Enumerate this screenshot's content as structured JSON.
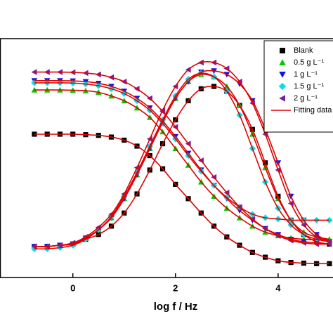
{
  "chart_data": {
    "type": "scatter",
    "x_label": "log f / Hz",
    "xlim": [
      -1.42,
      5.07
    ],
    "xticks": [
      0,
      2,
      4
    ],
    "ylim": [
      0,
      100
    ],
    "x": [
      -0.75,
      -0.5,
      -0.25,
      0,
      0.25,
      0.5,
      0.75,
      1,
      1.25,
      1.5,
      1.75,
      2,
      2.25,
      2.5,
      2.75,
      3,
      3.25,
      3.5,
      3.75,
      4,
      4.25,
      4.5,
      4.75,
      5
    ],
    "series": [
      {
        "name": "Blank",
        "color": "#000000",
        "marker": "square",
        "modulus": [
          60,
          60,
          60,
          60,
          59.8,
          59.5,
          58.8,
          57.5,
          55,
          51,
          45.5,
          39,
          33,
          27,
          21.5,
          17,
          13.5,
          10.5,
          8.5,
          7,
          6.3,
          6,
          5.8,
          5.8
        ],
        "phase": [
          13,
          13,
          13.5,
          14,
          16,
          18,
          21.5,
          27,
          35,
          45,
          56,
          66,
          74,
          79,
          80,
          78,
          72,
          62,
          48,
          34,
          24,
          18,
          15,
          14
        ]
      },
      {
        "name": "0.5 g L⁻¹",
        "color": "#00cc00",
        "marker": "triangle-up",
        "modulus": [
          78.5,
          78.5,
          78.5,
          78.4,
          78.2,
          77.5,
          76,
          74,
          71,
          67,
          61,
          54,
          47,
          40,
          34,
          29,
          25,
          21.5,
          19,
          17.5,
          16.5,
          16,
          15.8,
          15.7
        ],
        "phase": [
          13,
          13,
          13.5,
          14,
          16.5,
          20,
          25,
          33,
          43,
          54,
          65,
          75,
          82,
          85,
          84,
          80,
          72,
          60,
          46,
          33,
          24,
          19,
          17,
          16
        ]
      },
      {
        "name": "1 g L⁻¹",
        "color": "#1414e0",
        "marker": "triangle-down",
        "modulus": [
          82.4,
          82.4,
          82.4,
          82.3,
          82,
          81.3,
          80,
          78,
          75,
          71,
          65.5,
          59,
          52,
          45,
          38.5,
          33,
          28,
          24,
          20.5,
          18,
          16,
          15,
          14.5,
          14
        ],
        "phase": [
          13,
          13,
          13.5,
          14,
          16.5,
          20,
          25,
          33,
          43,
          54,
          65,
          75,
          82,
          86,
          86.5,
          85,
          81,
          74,
          62,
          48,
          34,
          24,
          18,
          15
        ]
      },
      {
        "name": "1.5 g L⁻¹",
        "color": "#00e0ee",
        "marker": "diamond",
        "modulus": [
          81.5,
          81.5,
          81.5,
          81.4,
          81,
          80.3,
          79,
          77,
          74,
          70,
          64.5,
          58,
          51,
          44.5,
          38.5,
          33.5,
          29.5,
          26.5,
          25,
          24.5,
          24,
          24,
          24,
          24
        ],
        "phase": [
          12,
          12,
          12.5,
          13.5,
          16,
          20,
          25.5,
          34,
          44,
          55,
          66,
          76,
          83,
          85.5,
          84,
          78,
          68,
          54,
          40,
          29,
          22,
          18,
          16,
          15
        ]
      },
      {
        "name": "2 g L⁻¹",
        "color": "#7a1fa0",
        "marker": "triangle-left",
        "modulus": [
          86,
          86,
          86,
          85.9,
          85.6,
          85,
          83.8,
          82,
          79,
          75,
          69.5,
          63,
          56,
          49,
          42,
          35.5,
          29.5,
          24.5,
          20.5,
          17.5,
          15.5,
          14.5,
          14,
          14
        ],
        "phase": [
          13,
          13,
          13.5,
          14.5,
          17,
          21,
          26.5,
          35,
          46,
          58,
          70,
          80,
          87,
          90,
          90,
          87.5,
          82,
          73,
          60,
          45,
          31,
          22,
          17,
          15
        ]
      }
    ],
    "fit": {
      "name": "Fitting data",
      "color": "#e00000"
    }
  }
}
